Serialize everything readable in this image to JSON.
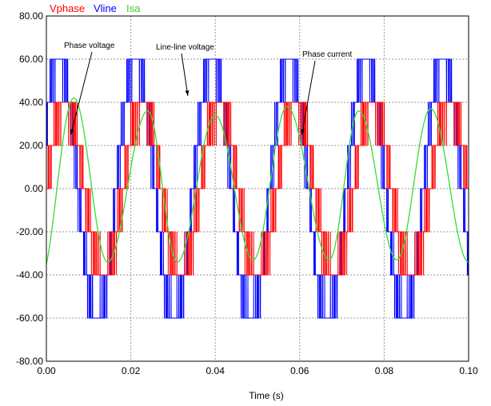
{
  "chart_data": {
    "type": "line",
    "title": "",
    "xlabel": "Time  (s)",
    "ylabel": "",
    "xlim": [
      0,
      0.1
    ],
    "ylim": [
      -80,
      80
    ],
    "x_ticks": [
      "0.00",
      "0.02",
      "0.04",
      "0.06",
      "0.08",
      "0.10"
    ],
    "y_ticks": [
      "80.00",
      "60.00",
      "40.00",
      "20.00",
      "0.00",
      "-20.00",
      "-40.00",
      "-60.00",
      "-80.00"
    ],
    "grid": true,
    "legend_position": "top-left",
    "fundamental_frequency_hz": 55,
    "series": [
      {
        "name": "Vphase",
        "color": "#ff0000",
        "kind": "pwm",
        "levels": [
          -40,
          -20,
          0,
          20,
          40
        ],
        "amplitude": 40
      },
      {
        "name": "Vline",
        "color": "#0000ff",
        "kind": "pwm",
        "levels": [
          -60,
          -40,
          -20,
          0,
          20,
          40,
          60
        ],
        "amplitude": 60
      },
      {
        "name": "Isa",
        "color": "#33dd33",
        "kind": "sine",
        "amplitude": 37.5,
        "peaks": [
          [
            0.0065,
            42
          ],
          [
            0.0145,
            -34
          ],
          [
            0.024,
            36
          ],
          [
            0.031,
            -34
          ],
          [
            0.04,
            34
          ],
          [
            0.049,
            -33
          ],
          [
            0.057,
            38
          ],
          [
            0.067,
            -33
          ],
          [
            0.074,
            36
          ],
          [
            0.083,
            -33
          ],
          [
            0.091,
            37
          ],
          [
            0.1,
            -34
          ]
        ]
      }
    ],
    "annotations": [
      {
        "text": "Phase voltage",
        "x": 0.0058,
        "y": 25
      },
      {
        "text": "Line-line voltage",
        "x": 0.0335,
        "y": 43
      },
      {
        "text": "Phase current",
        "x": 0.0605,
        "y": 25
      }
    ]
  }
}
